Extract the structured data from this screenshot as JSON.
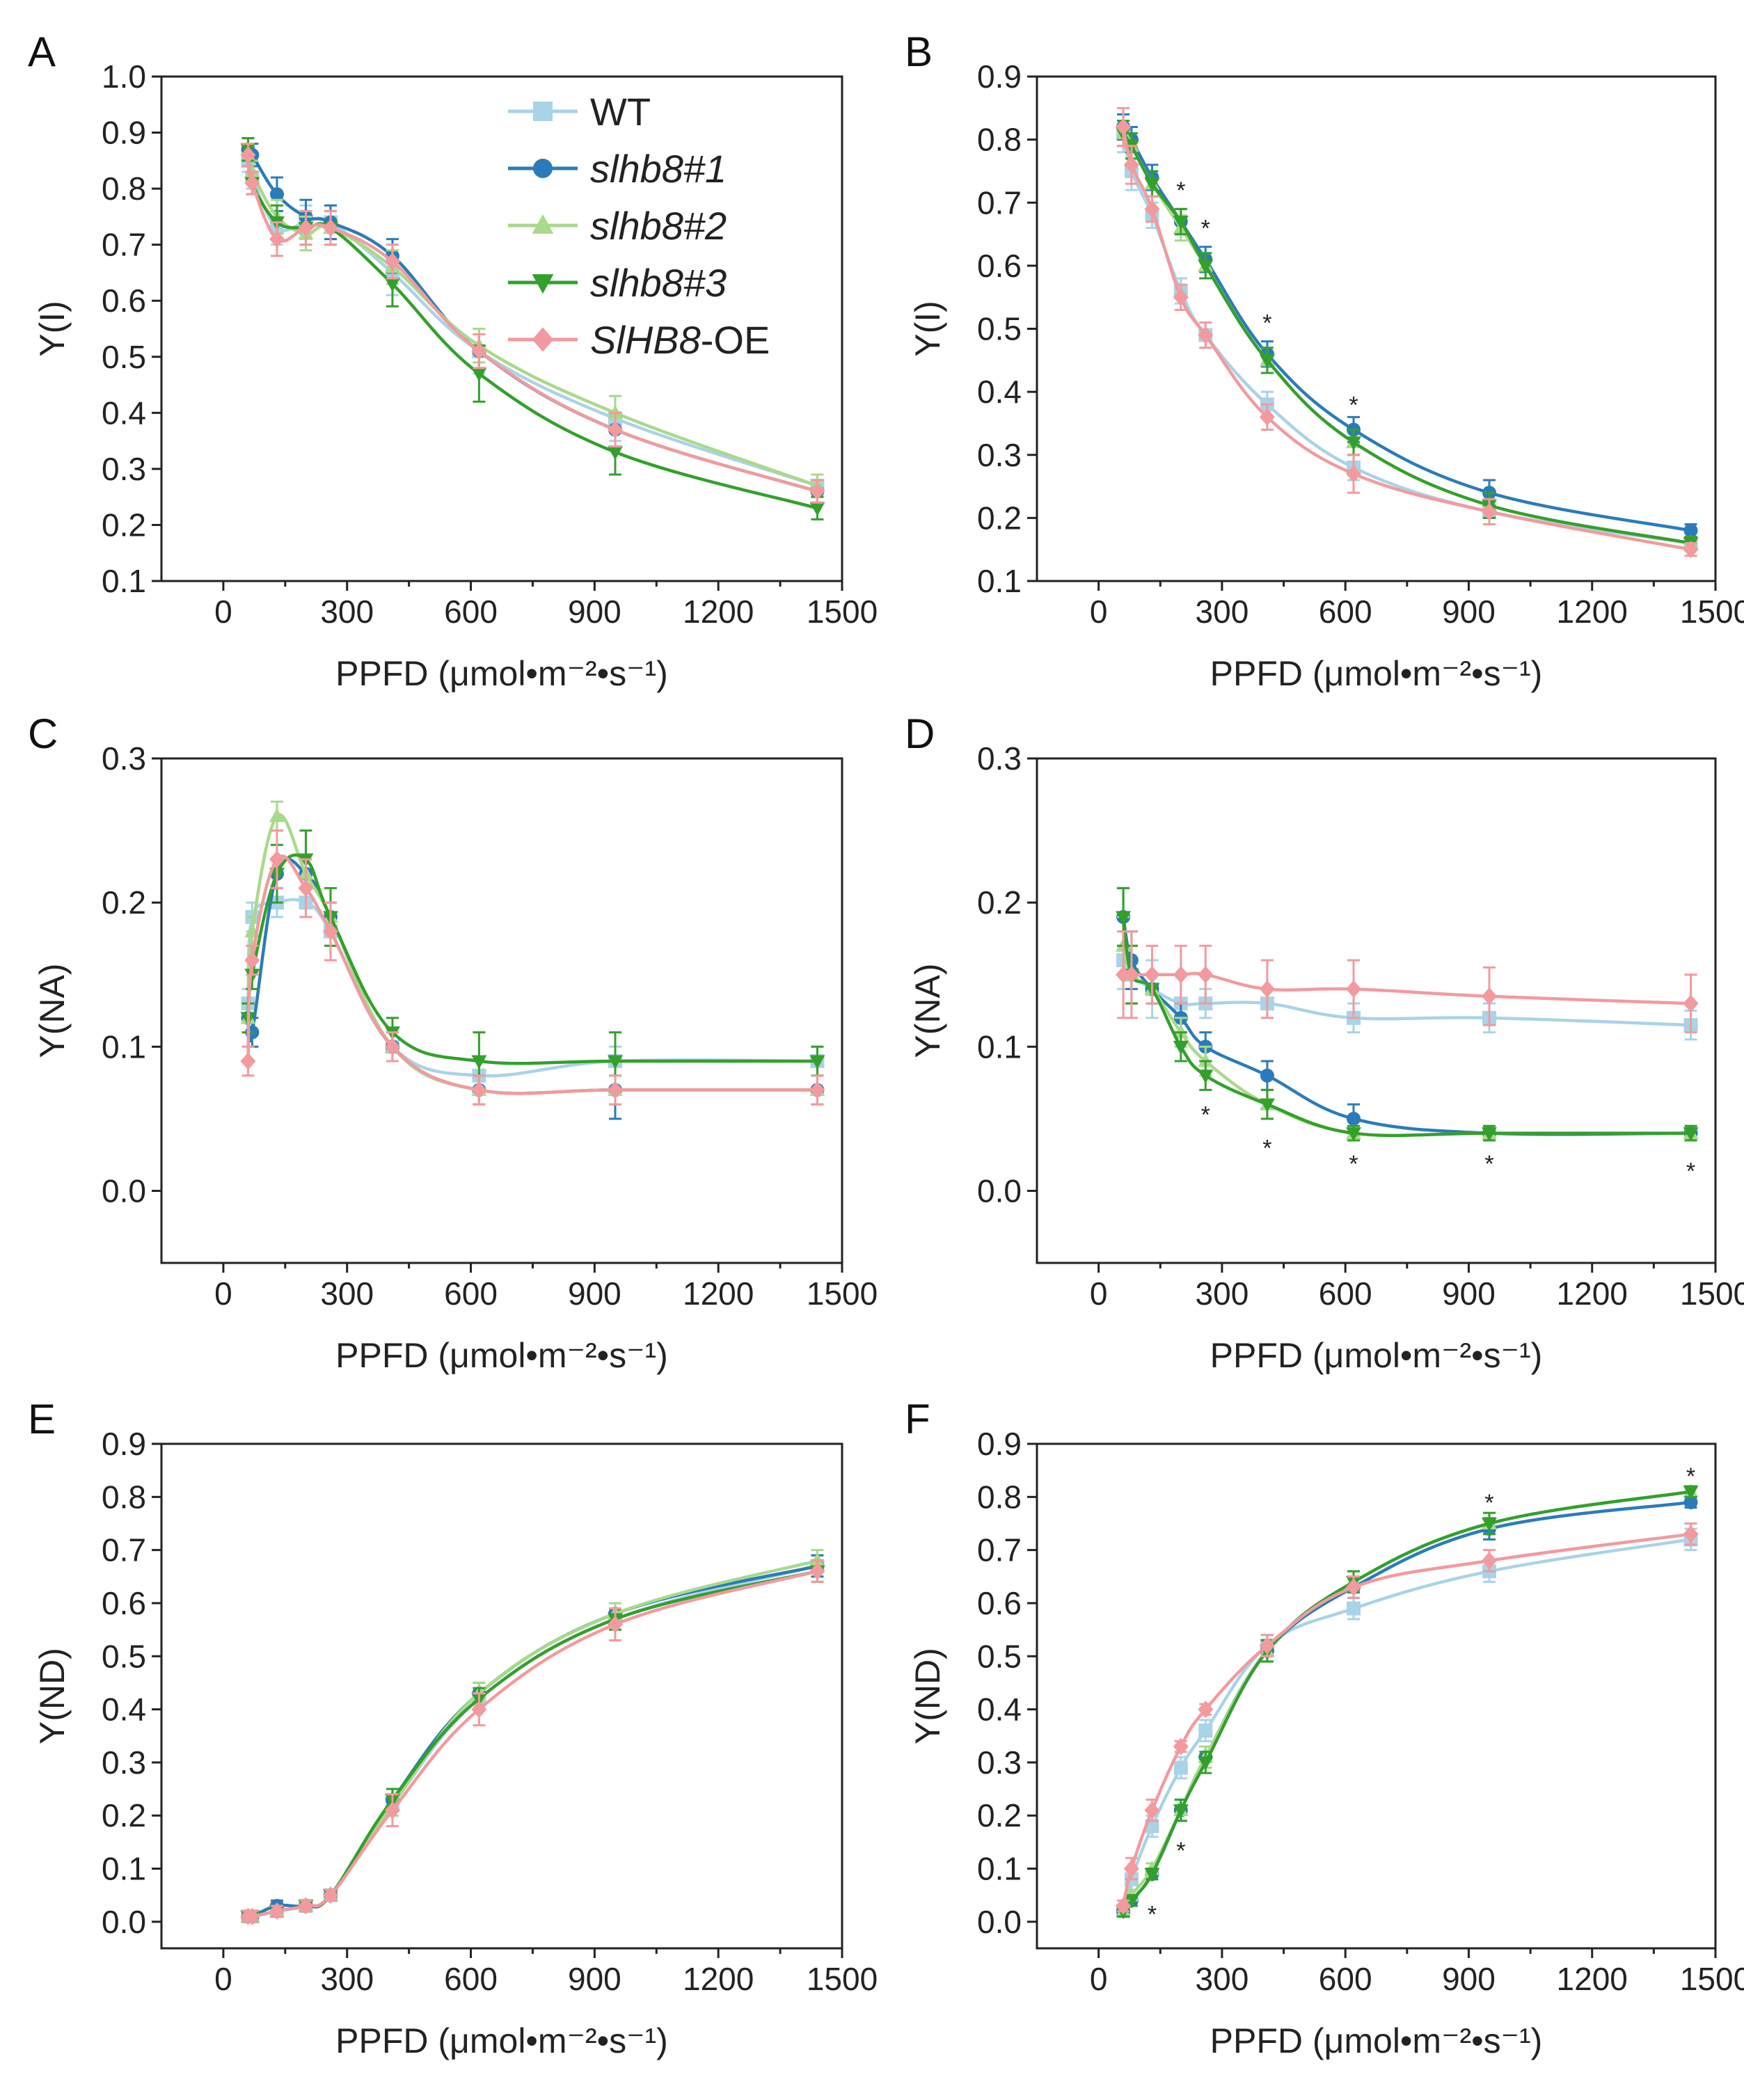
{
  "colors": {
    "WT": "#a9d3e6",
    "slhb8#1": "#2b7bba",
    "slhb8#2": "#a9d98b",
    "slhb8#3": "#33a02c",
    "SlHB8-OE": "#f29a9e"
  },
  "legend": {
    "items": [
      {
        "key": "WT",
        "text": "WT",
        "italic": false,
        "marker": "square"
      },
      {
        "key": "slhb8#1",
        "text": "slhb8#1",
        "italic": true,
        "marker": "circle"
      },
      {
        "key": "slhb8#2",
        "text": "slhb8#2",
        "italic": true,
        "marker": "triangle-up"
      },
      {
        "key": "slhb8#3",
        "text": "slhb8#3",
        "italic": true,
        "marker": "triangle-down"
      },
      {
        "key": "SlHB8-OE",
        "text_italic": "SlHB8",
        "text_rest": "-OE",
        "marker": "diamond"
      }
    ]
  },
  "chart_data": [
    {
      "panel": "A",
      "type": "line",
      "ylabel": "Y(I)",
      "xlabel": "PPFD (μmol•m⁻²•s⁻¹)",
      "xlim": [
        -150,
        1500
      ],
      "ylim": [
        0.1,
        1.0
      ],
      "xticks": [
        "0",
        "300",
        "600",
        "900",
        "1200",
        "1500"
      ],
      "yticks": [
        "0.1",
        "0.2",
        "0.3",
        "0.4",
        "0.5",
        "0.6",
        "0.7",
        "0.8",
        "0.9",
        "1.0"
      ],
      "x": [
        60,
        70,
        130,
        200,
        260,
        410,
        620,
        950,
        1440
      ],
      "series": [
        {
          "name": "WT",
          "values": [
            0.85,
            0.82,
            0.73,
            0.74,
            0.74,
            0.65,
            0.51,
            0.39,
            0.27
          ],
          "err": [
            0.02,
            0.02,
            0.03,
            0.03,
            0.03,
            0.04,
            0.04,
            0.04,
            0.02
          ]
        },
        {
          "name": "slhb8#1",
          "values": [
            0.87,
            0.86,
            0.79,
            0.75,
            0.74,
            0.68,
            0.51,
            0.37,
            0.26
          ],
          "err": [
            0.02,
            0.02,
            0.03,
            0.03,
            0.03,
            0.03,
            0.03,
            0.03,
            0.02
          ]
        },
        {
          "name": "slhb8#2",
          "values": [
            0.86,
            0.83,
            0.75,
            0.72,
            0.73,
            0.66,
            0.52,
            0.4,
            0.27
          ],
          "err": [
            0.02,
            0.02,
            0.03,
            0.03,
            0.03,
            0.03,
            0.03,
            0.03,
            0.02
          ]
        },
        {
          "name": "slhb8#3",
          "values": [
            0.87,
            0.81,
            0.74,
            0.73,
            0.73,
            0.63,
            0.47,
            0.33,
            0.23
          ],
          "err": [
            0.02,
            0.02,
            0.03,
            0.03,
            0.03,
            0.04,
            0.05,
            0.04,
            0.02
          ]
        },
        {
          "name": "SlHB8-OE",
          "values": [
            0.86,
            0.81,
            0.71,
            0.73,
            0.73,
            0.67,
            0.51,
            0.37,
            0.26
          ],
          "err": [
            0.02,
            0.02,
            0.03,
            0.03,
            0.03,
            0.03,
            0.03,
            0.03,
            0.02
          ]
        }
      ],
      "annotations": []
    },
    {
      "panel": "B",
      "type": "line",
      "ylabel": "Y(I)",
      "xlabel": "PPFD (μmol•m⁻²•s⁻¹)",
      "xlim": [
        -150,
        1500
      ],
      "ylim": [
        0.1,
        0.9
      ],
      "xticks": [
        "0",
        "300",
        "600",
        "900",
        "1200",
        "1500"
      ],
      "yticks": [
        "0.1",
        "0.2",
        "0.3",
        "0.4",
        "0.5",
        "0.6",
        "0.7",
        "0.8",
        "0.9"
      ],
      "x": [
        60,
        80,
        130,
        200,
        260,
        410,
        620,
        950,
        1440
      ],
      "series": [
        {
          "name": "WT",
          "values": [
            0.81,
            0.75,
            0.68,
            0.56,
            0.49,
            0.38,
            0.28,
            0.21,
            0.16
          ],
          "err": [
            0.03,
            0.03,
            0.02,
            0.02,
            0.02,
            0.02,
            0.02,
            0.02,
            0.01
          ]
        },
        {
          "name": "slhb8#1",
          "values": [
            0.82,
            0.8,
            0.74,
            0.67,
            0.61,
            0.46,
            0.34,
            0.24,
            0.18
          ],
          "err": [
            0.02,
            0.02,
            0.02,
            0.02,
            0.02,
            0.02,
            0.02,
            0.02,
            0.01
          ]
        },
        {
          "name": "slhb8#2",
          "values": [
            0.81,
            0.79,
            0.73,
            0.66,
            0.6,
            0.45,
            0.32,
            0.22,
            0.16
          ],
          "err": [
            0.02,
            0.02,
            0.02,
            0.02,
            0.02,
            0.02,
            0.02,
            0.02,
            0.01
          ]
        },
        {
          "name": "slhb8#3",
          "values": [
            0.81,
            0.79,
            0.73,
            0.67,
            0.6,
            0.45,
            0.32,
            0.22,
            0.16
          ],
          "err": [
            0.02,
            0.02,
            0.02,
            0.02,
            0.02,
            0.02,
            0.02,
            0.02,
            0.01
          ]
        },
        {
          "name": "SlHB8-OE",
          "values": [
            0.82,
            0.76,
            0.69,
            0.55,
            0.49,
            0.36,
            0.27,
            0.21,
            0.15
          ],
          "err": [
            0.03,
            0.03,
            0.02,
            0.02,
            0.02,
            0.02,
            0.03,
            0.02,
            0.01
          ]
        }
      ],
      "annotations": [
        {
          "x": 200,
          "y": 0.72,
          "text": "*"
        },
        {
          "x": 260,
          "y": 0.66,
          "text": "*"
        },
        {
          "x": 410,
          "y": 0.51,
          "text": "*"
        },
        {
          "x": 620,
          "y": 0.38,
          "text": "*"
        }
      ]
    },
    {
      "panel": "C",
      "type": "line",
      "ylabel": "Y(NA)",
      "xlabel": "PPFD (μmol•m⁻²•s⁻¹)",
      "xlim": [
        -150,
        1500
      ],
      "ylim": [
        -0.05,
        0.3
      ],
      "xticks": [
        "0",
        "300",
        "600",
        "900",
        "1200",
        "1500"
      ],
      "yticks": [
        "0.0",
        "0.1",
        "0.2",
        "0.3"
      ],
      "x": [
        60,
        70,
        130,
        200,
        260,
        410,
        620,
        950,
        1440
      ],
      "series": [
        {
          "name": "WT",
          "values": [
            0.13,
            0.19,
            0.2,
            0.2,
            0.18,
            0.1,
            0.08,
            0.09,
            0.09
          ],
          "err": [
            0.01,
            0.01,
            0.01,
            0.01,
            0.01,
            0.01,
            0.01,
            0.01,
            0.01
          ]
        },
        {
          "name": "slhb8#1",
          "values": [
            0.12,
            0.11,
            0.22,
            0.22,
            0.19,
            0.1,
            0.07,
            0.07,
            0.07
          ],
          "err": [
            0.01,
            0.01,
            0.01,
            0.01,
            0.01,
            0.01,
            0.01,
            0.02,
            0.01
          ]
        },
        {
          "name": "slhb8#2",
          "values": [
            0.12,
            0.18,
            0.26,
            0.22,
            0.19,
            0.1,
            0.07,
            0.07,
            0.07
          ],
          "err": [
            0.01,
            0.01,
            0.01,
            0.01,
            0.01,
            0.01,
            0.01,
            0.01,
            0.01
          ]
        },
        {
          "name": "slhb8#3",
          "values": [
            0.12,
            0.15,
            0.22,
            0.23,
            0.19,
            0.11,
            0.09,
            0.09,
            0.09
          ],
          "err": [
            0.01,
            0.01,
            0.02,
            0.02,
            0.02,
            0.01,
            0.02,
            0.02,
            0.01
          ]
        },
        {
          "name": "SlHB8-OE",
          "values": [
            0.09,
            0.16,
            0.23,
            0.21,
            0.18,
            0.1,
            0.07,
            0.07,
            0.07
          ],
          "err": [
            0.01,
            0.01,
            0.02,
            0.02,
            0.02,
            0.01,
            0.01,
            0.01,
            0.01
          ]
        }
      ],
      "annotations": []
    },
    {
      "panel": "D",
      "type": "line",
      "ylabel": "Y(NA)",
      "xlabel": "PPFD (μmol•m⁻²•s⁻¹)",
      "xlim": [
        -150,
        1500
      ],
      "ylim": [
        -0.05,
        0.3
      ],
      "xticks": [
        "0",
        "300",
        "600",
        "900",
        "1200",
        "1500"
      ],
      "yticks": [
        "0.0",
        "0.1",
        "0.2",
        "0.3"
      ],
      "x": [
        60,
        80,
        130,
        200,
        260,
        410,
        620,
        950,
        1440
      ],
      "series": [
        {
          "name": "WT",
          "values": [
            0.16,
            0.15,
            0.14,
            0.13,
            0.13,
            0.13,
            0.12,
            0.12,
            0.115
          ],
          "err": [
            0.02,
            0.02,
            0.02,
            0.02,
            0.01,
            0.01,
            0.01,
            0.01,
            0.01
          ]
        },
        {
          "name": "slhb8#1",
          "values": [
            0.19,
            0.16,
            0.14,
            0.12,
            0.1,
            0.08,
            0.05,
            0.04,
            0.04
          ],
          "err": [
            0.02,
            0.02,
            0.01,
            0.01,
            0.01,
            0.01,
            0.01,
            0.005,
            0.005
          ]
        },
        {
          "name": "slhb8#2",
          "values": [
            0.17,
            0.15,
            0.14,
            0.11,
            0.09,
            0.06,
            0.04,
            0.04,
            0.04
          ],
          "err": [
            0.02,
            0.02,
            0.01,
            0.01,
            0.01,
            0.01,
            0.005,
            0.005,
            0.005
          ]
        },
        {
          "name": "slhb8#3",
          "values": [
            0.19,
            0.15,
            0.14,
            0.1,
            0.08,
            0.06,
            0.04,
            0.04,
            0.04
          ],
          "err": [
            0.02,
            0.02,
            0.01,
            0.01,
            0.01,
            0.01,
            0.005,
            0.005,
            0.005
          ]
        },
        {
          "name": "SlHB8-OE",
          "values": [
            0.15,
            0.15,
            0.15,
            0.15,
            0.15,
            0.14,
            0.14,
            0.135,
            0.13
          ],
          "err": [
            0.03,
            0.03,
            0.02,
            0.02,
            0.02,
            0.02,
            0.02,
            0.02,
            0.02
          ]
        }
      ],
      "annotations": [
        {
          "x": 260,
          "y": 0.053,
          "text": "*"
        },
        {
          "x": 410,
          "y": 0.03,
          "text": "*"
        },
        {
          "x": 620,
          "y": 0.019,
          "text": "*"
        },
        {
          "x": 950,
          "y": 0.019,
          "text": "*"
        },
        {
          "x": 1440,
          "y": 0.014,
          "text": "*"
        }
      ]
    },
    {
      "panel": "E",
      "type": "line",
      "ylabel": "Y(ND)",
      "xlabel": "PPFD (μmol•m⁻²•s⁻¹)",
      "xlim": [
        -150,
        1500
      ],
      "ylim": [
        -0.05,
        0.9
      ],
      "xticks": [
        "0",
        "300",
        "600",
        "900",
        "1200",
        "1500"
      ],
      "yticks": [
        "0.0",
        "0.1",
        "0.2",
        "0.3",
        "0.4",
        "0.5",
        "0.6",
        "0.7",
        "0.8",
        "0.9"
      ],
      "x": [
        60,
        70,
        130,
        200,
        260,
        410,
        620,
        950,
        1440
      ],
      "series": [
        {
          "name": "WT",
          "values": [
            0.01,
            0.01,
            0.02,
            0.03,
            0.05,
            0.22,
            0.42,
            0.57,
            0.67
          ],
          "err": [
            0.01,
            0.01,
            0.01,
            0.01,
            0.01,
            0.02,
            0.02,
            0.02,
            0.02
          ]
        },
        {
          "name": "slhb8#1",
          "values": [
            0.01,
            0.01,
            0.03,
            0.03,
            0.05,
            0.23,
            0.43,
            0.58,
            0.67
          ],
          "err": [
            0.01,
            0.01,
            0.01,
            0.01,
            0.01,
            0.02,
            0.02,
            0.02,
            0.02
          ]
        },
        {
          "name": "slhb8#2",
          "values": [
            0.01,
            0.01,
            0.02,
            0.03,
            0.05,
            0.22,
            0.43,
            0.58,
            0.68
          ],
          "err": [
            0.01,
            0.01,
            0.01,
            0.01,
            0.01,
            0.02,
            0.02,
            0.02,
            0.02
          ]
        },
        {
          "name": "slhb8#3",
          "values": [
            0.01,
            0.01,
            0.02,
            0.03,
            0.05,
            0.23,
            0.42,
            0.57,
            0.66
          ],
          "err": [
            0.01,
            0.01,
            0.01,
            0.01,
            0.01,
            0.02,
            0.02,
            0.02,
            0.02
          ]
        },
        {
          "name": "SlHB8-OE",
          "values": [
            0.01,
            0.01,
            0.02,
            0.03,
            0.05,
            0.21,
            0.4,
            0.56,
            0.66
          ],
          "err": [
            0.01,
            0.01,
            0.01,
            0.01,
            0.01,
            0.03,
            0.03,
            0.03,
            0.02
          ]
        }
      ],
      "annotations": []
    },
    {
      "panel": "F",
      "type": "line",
      "ylabel": "Y(ND)",
      "xlabel": "PPFD (μmol•m⁻²•s⁻¹)",
      "xlim": [
        -150,
        1500
      ],
      "ylim": [
        -0.05,
        0.9
      ],
      "xticks": [
        "0",
        "300",
        "600",
        "900",
        "1200",
        "1500"
      ],
      "yticks": [
        "0.0",
        "0.1",
        "0.2",
        "0.3",
        "0.4",
        "0.5",
        "0.6",
        "0.7",
        "0.8",
        "0.9"
      ],
      "x": [
        60,
        80,
        130,
        200,
        260,
        410,
        620,
        950,
        1440
      ],
      "series": [
        {
          "name": "WT",
          "values": [
            0.02,
            0.08,
            0.18,
            0.29,
            0.36,
            0.52,
            0.59,
            0.66,
            0.72
          ],
          "err": [
            0.01,
            0.02,
            0.02,
            0.02,
            0.02,
            0.02,
            0.02,
            0.02,
            0.02
          ]
        },
        {
          "name": "slhb8#1",
          "values": [
            0.02,
            0.04,
            0.09,
            0.21,
            0.31,
            0.51,
            0.63,
            0.74,
            0.79
          ],
          "err": [
            0.01,
            0.01,
            0.01,
            0.02,
            0.02,
            0.02,
            0.02,
            0.02,
            0.01
          ]
        },
        {
          "name": "slhb8#2",
          "values": [
            0.02,
            0.05,
            0.1,
            0.21,
            0.31,
            0.51,
            0.64,
            0.75,
            0.81
          ],
          "err": [
            0.01,
            0.01,
            0.01,
            0.02,
            0.02,
            0.02,
            0.02,
            0.02,
            0.01
          ]
        },
        {
          "name": "slhb8#3",
          "values": [
            0.02,
            0.04,
            0.09,
            0.21,
            0.3,
            0.51,
            0.64,
            0.75,
            0.81
          ],
          "err": [
            0.01,
            0.01,
            0.01,
            0.02,
            0.02,
            0.02,
            0.02,
            0.02,
            0.01
          ]
        },
        {
          "name": "SlHB8-OE",
          "values": [
            0.03,
            0.1,
            0.21,
            0.33,
            0.4,
            0.52,
            0.63,
            0.68,
            0.73
          ],
          "err": [
            0.01,
            0.02,
            0.02,
            0.01,
            0.01,
            0.02,
            0.02,
            0.02,
            0.02
          ]
        }
      ],
      "annotations": [
        {
          "x": 130,
          "y": 0.015,
          "text": "*"
        },
        {
          "x": 200,
          "y": 0.135,
          "text": "*"
        },
        {
          "x": 950,
          "y": 0.79,
          "text": "*"
        },
        {
          "x": 1440,
          "y": 0.84,
          "text": "*"
        }
      ]
    }
  ]
}
